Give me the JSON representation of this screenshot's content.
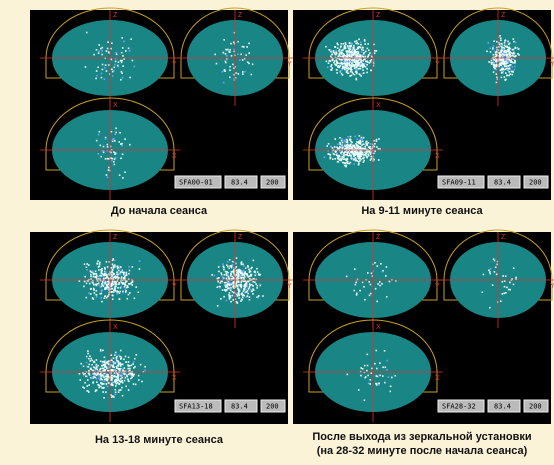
{
  "axis_labels": {
    "z": "Z",
    "y": "Y",
    "x": "X"
  },
  "panels": [
    {
      "caption": [
        "До начала сеанса"
      ],
      "status": {
        "name": "SFA00-01",
        "value": "83.4",
        "count": "200"
      }
    },
    {
      "caption": [
        "На 9-11 минуте сеанса"
      ],
      "status": {
        "name": "SFA09-11",
        "value": "83.4",
        "count": "200"
      }
    },
    {
      "caption": [
        "На 13-18 минуте сеанса"
      ],
      "status": {
        "name": "SFA13-18",
        "value": "83.4",
        "count": "200"
      }
    },
    {
      "caption": [
        "После выхода из зеркальной установки",
        "(на 28-32 минуте после начала сеанса)"
      ],
      "status": {
        "name": "SFA28-32",
        "value": "83.4",
        "count": "200"
      }
    }
  ]
}
